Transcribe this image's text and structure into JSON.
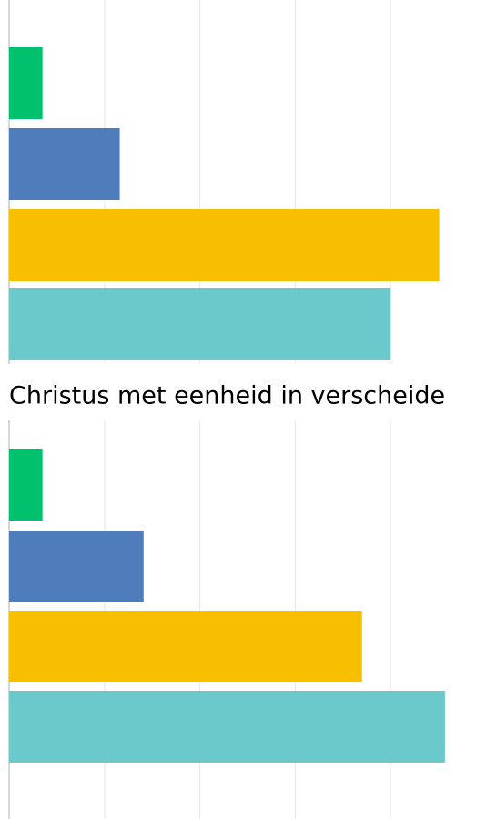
{
  "chart_data": [
    {
      "type": "bar",
      "orientation": "horizontal",
      "values": [
        0.35,
        1.16,
        4.51,
        4.0
      ],
      "colors": [
        "#00c16e",
        "#4f7cba",
        "#f8be00",
        "#6bc9cc"
      ],
      "xlim": [
        0,
        5
      ],
      "xticks": [
        0,
        1,
        2,
        3,
        4
      ],
      "grid": true
    },
    {
      "type": "bar",
      "orientation": "horizontal",
      "title": "Christus met eenheid in verscheide",
      "values": [
        0.35,
        1.41,
        3.7,
        4.57
      ],
      "colors": [
        "#00c16e",
        "#4f7cba",
        "#f8be00",
        "#6bc9cc"
      ],
      "xlim": [
        0,
        5
      ],
      "xticks": [
        0,
        1,
        2,
        3,
        4
      ],
      "grid": true
    }
  ]
}
